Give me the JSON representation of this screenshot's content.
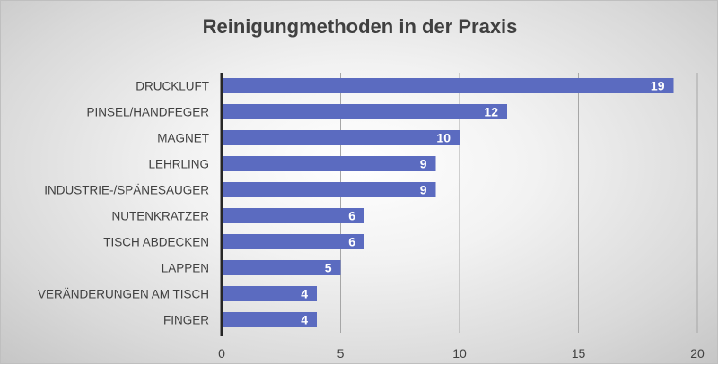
{
  "chart_data": {
    "type": "bar",
    "orientation": "horizontal",
    "title": "Reinigungmethoden in der Praxis",
    "categories": [
      "DRUCKLUFT",
      "PINSEL/HANDFEGER",
      "MAGNET",
      "LEHRLING",
      "INDUSTRIE-/SPÄNESAUGER",
      "NUTENKRATZER",
      "TISCH ABDECKEN",
      "LAPPEN",
      "VERÄNDERUNGEN AM TISCH",
      "FINGER"
    ],
    "values": [
      19,
      12,
      10,
      9,
      9,
      6,
      6,
      5,
      4,
      4
    ],
    "xlim": [
      0,
      20
    ],
    "xticks": [
      0,
      5,
      10,
      15,
      20
    ],
    "grid": true,
    "data_labels": true,
    "bar_color": "#5b6bc0",
    "xlabel": "",
    "ylabel": ""
  }
}
